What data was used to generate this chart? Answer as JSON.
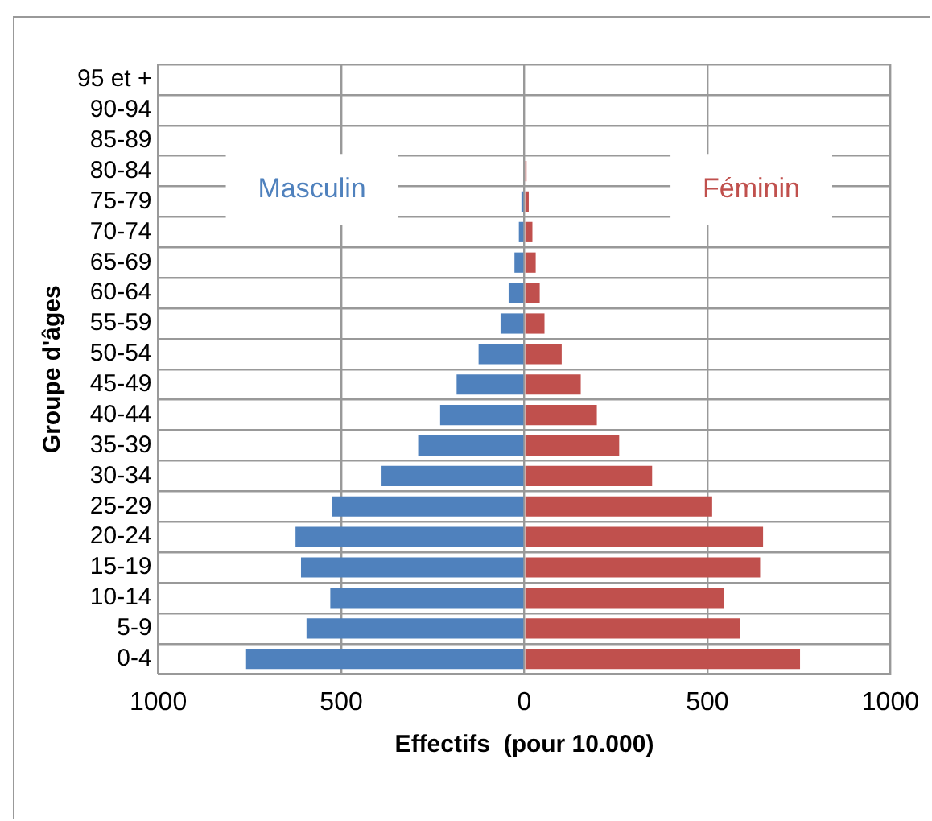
{
  "chart_data": {
    "type": "bar",
    "orientation": "horizontal",
    "stacked": true,
    "xlabel": "Effectifs  (pour 10.000)",
    "ylabel": "Groupe d'âges",
    "categories": [
      "95 et +",
      "90-94",
      "85-89",
      "80-84",
      "75-79",
      "70-74",
      "65-69",
      "60-64",
      "55-59",
      "50-54",
      "45-49",
      "40-44",
      "35-39",
      "30-34",
      "25-29",
      "20-24",
      "15-19",
      "10-14",
      "5-9",
      "0-4"
    ],
    "series": [
      {
        "name": "Masculin",
        "color": "#4f81bd",
        "values": [
          0,
          0,
          0,
          null,
          -8,
          -15,
          -27,
          -43,
          -65,
          -125,
          -185,
          -230,
          -290,
          -390,
          -525,
          -625,
          -610,
          -530,
          -595,
          -760
        ]
      },
      {
        "name": "Féminin",
        "color": "#c0504d",
        "values": [
          0,
          0,
          0,
          6,
          12,
          22,
          31,
          42,
          55,
          102,
          154,
          198,
          259,
          349,
          513,
          652,
          644,
          546,
          589,
          753
        ]
      }
    ],
    "xlim": [
      -1000,
      1000
    ],
    "xticks": [
      {
        "value": -1000,
        "label": "1000"
      },
      {
        "value": -500,
        "label": "500"
      },
      0,
      500,
      1000
    ],
    "grid": true
  }
}
